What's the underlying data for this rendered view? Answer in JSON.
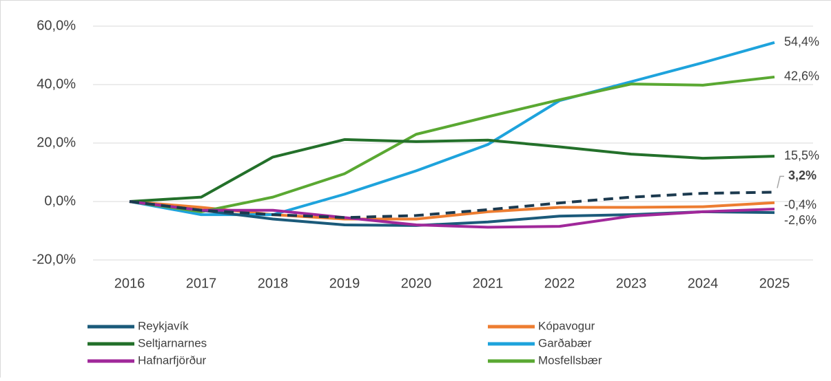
{
  "chart_data": {
    "type": "line",
    "categories": [
      "2016",
      "2017",
      "2018",
      "2019",
      "2020",
      "2021",
      "2022",
      "2023",
      "2024",
      "2025"
    ],
    "ylim": [
      -20,
      60
    ],
    "yticks": [
      {
        "value": -20,
        "label": "-20,0%"
      },
      {
        "value": 0,
        "label": "0,0%"
      },
      {
        "value": 20,
        "label": "20,0%"
      },
      {
        "value": 40,
        "label": "40,0%"
      },
      {
        "value": 60,
        "label": "60,0%"
      }
    ],
    "grid": true,
    "legend": "bottom",
    "series": [
      {
        "name": "Reykjavík",
        "color": "#1b5a7a",
        "values": [
          0,
          -3.0,
          -6.0,
          -8.0,
          -8.2,
          -7.0,
          -5.0,
          -4.5,
          -3.5,
          -3.8
        ]
      },
      {
        "name": "Kópavogur",
        "color": "#ed7d31",
        "values": [
          0,
          -2.0,
          -4.5,
          -6.0,
          -6.0,
          -3.5,
          -2.0,
          -2.0,
          -1.8,
          -0.4
        ],
        "value_labels": [
          null,
          null,
          null,
          null,
          null,
          null,
          null,
          null,
          null,
          "-0,4%"
        ]
      },
      {
        "name": "Seltjarnarnes",
        "color": "#23702a",
        "values": [
          0,
          1.5,
          15.2,
          21.2,
          20.5,
          21.0,
          18.7,
          16.2,
          14.8,
          15.5
        ],
        "value_labels": [
          null,
          null,
          null,
          null,
          null,
          null,
          null,
          null,
          null,
          "15,5%"
        ]
      },
      {
        "name": "Garðabær",
        "color": "#1ea3dc",
        "values": [
          0,
          -4.5,
          -4.5,
          2.5,
          10.5,
          19.5,
          34.5,
          41.0,
          47.5,
          54.4
        ],
        "value_labels": [
          null,
          null,
          null,
          null,
          null,
          null,
          null,
          null,
          null,
          "54,4%"
        ]
      },
      {
        "name": "Hafnarfjörður",
        "color": "#a0289a",
        "values": [
          0,
          -3.0,
          -3.0,
          -5.5,
          -8.0,
          -8.8,
          -8.5,
          -5.0,
          -3.5,
          -2.6
        ],
        "value_labels": [
          null,
          null,
          null,
          null,
          null,
          null,
          null,
          null,
          null,
          "-2,6%"
        ]
      },
      {
        "name": "Mosfellsbær",
        "color": "#5aa832",
        "values": [
          0,
          -3.5,
          1.5,
          9.5,
          23.0,
          29.0,
          34.8,
          40.2,
          39.8,
          42.6
        ],
        "value_labels": [
          null,
          null,
          null,
          null,
          null,
          null,
          null,
          null,
          null,
          "42,6%"
        ]
      },
      {
        "color": "#1c3a4f",
        "dashed": true,
        "values": [
          0,
          -3.0,
          -4.5,
          -5.5,
          -4.8,
          -2.8,
          -0.5,
          1.5,
          2.8,
          3.2
        ],
        "value_labels": [
          null,
          null,
          null,
          null,
          null,
          null,
          null,
          null,
          null,
          "3,2%"
        ]
      }
    ]
  }
}
